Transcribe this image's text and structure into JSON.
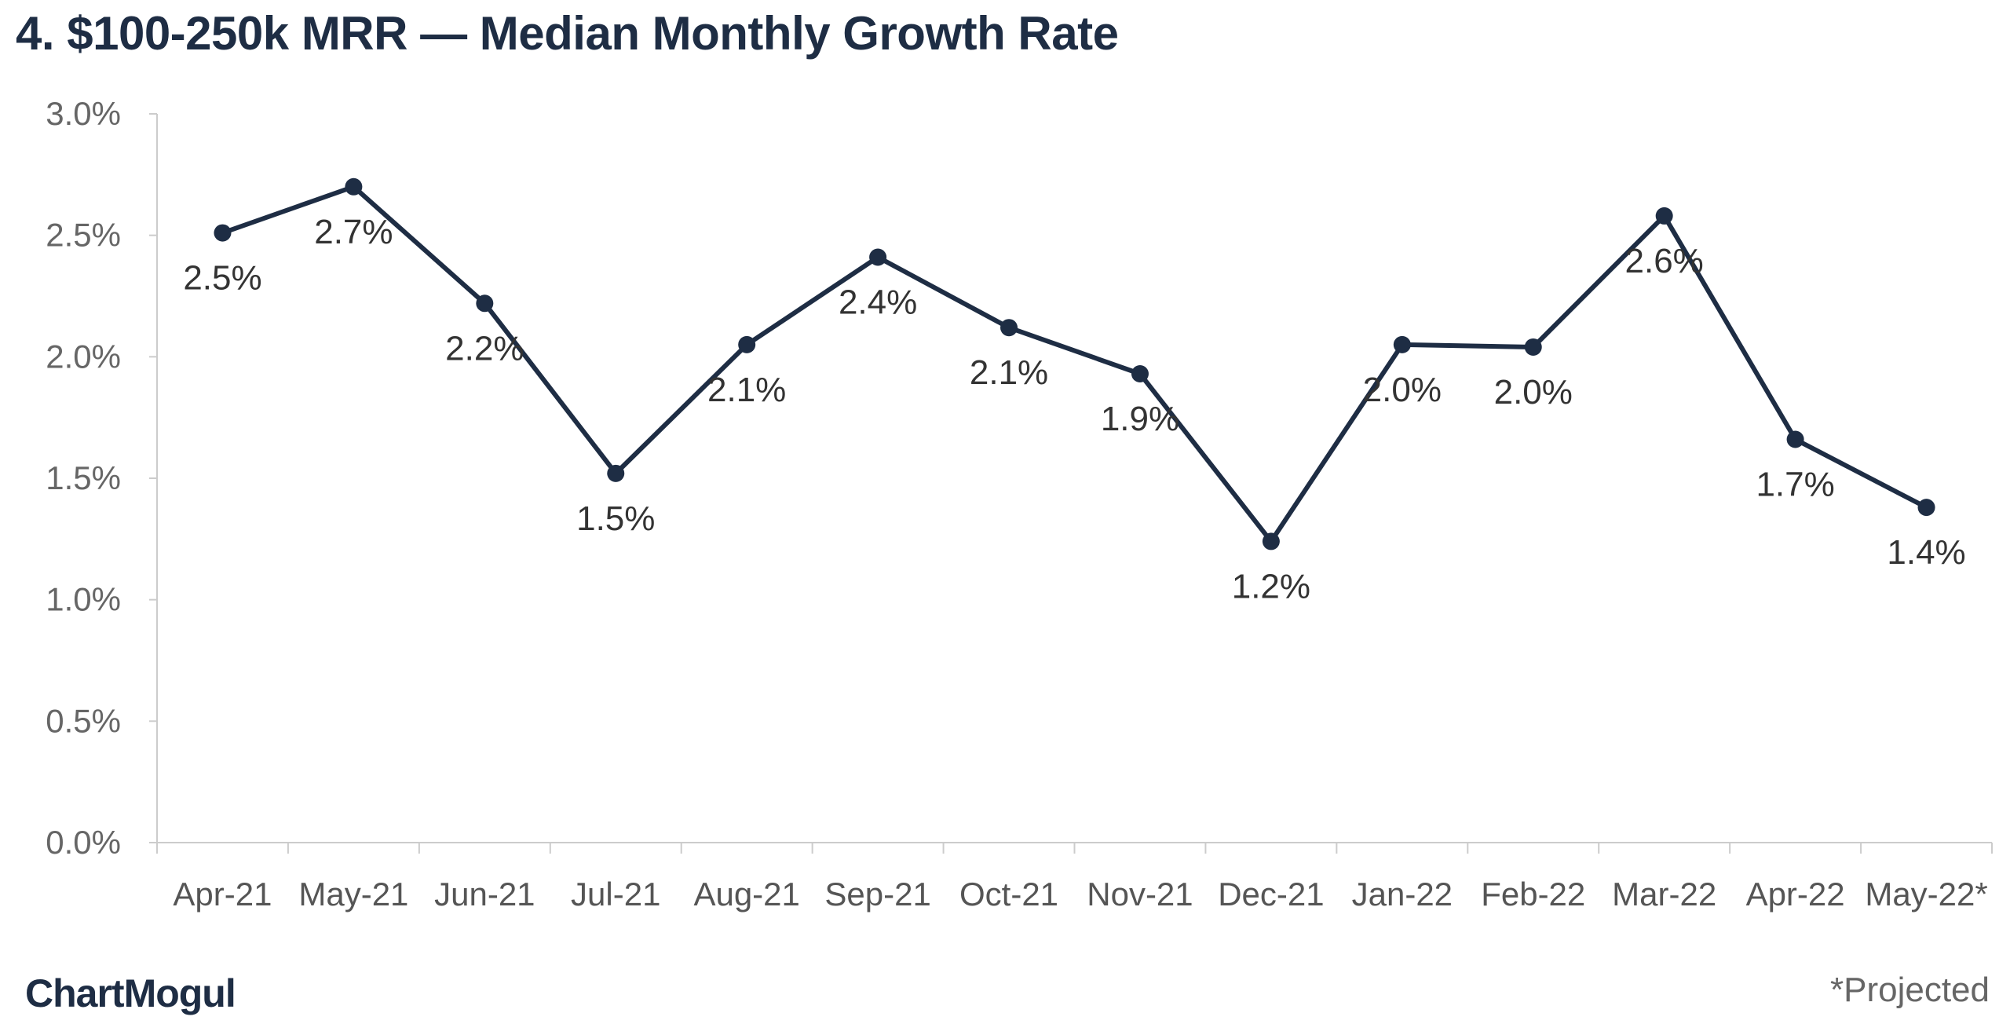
{
  "title": "4. $100-250k MRR — Median Monthly Growth Rate",
  "brand": "ChartMogul",
  "footnote": "*Projected",
  "colors": {
    "line": "#1e2d44",
    "axis": "#cccccc",
    "title": "#1e2d44"
  },
  "chart_data": {
    "type": "line",
    "title": "4. $100-250k MRR — Median Monthly Growth Rate",
    "xlabel": "",
    "ylabel": "",
    "ylim": [
      0,
      3.0
    ],
    "yticks": [
      "0.0%",
      "0.5%",
      "1.0%",
      "1.5%",
      "2.0%",
      "2.5%",
      "3.0%"
    ],
    "categories": [
      "Apr-21",
      "May-21",
      "Jun-21",
      "Jul-21",
      "Aug-21",
      "Sep-21",
      "Oct-21",
      "Nov-21",
      "Dec-21",
      "Jan-22",
      "Feb-22",
      "Mar-22",
      "Apr-22",
      "May-22*"
    ],
    "series": [
      {
        "values": [
          2.51,
          2.7,
          2.22,
          1.52,
          2.05,
          2.41,
          2.12,
          1.93,
          1.24,
          2.05,
          2.04,
          2.58,
          1.66,
          1.38
        ],
        "labels": [
          "2.5%",
          "2.7%",
          "2.2%",
          "1.5%",
          "2.1%",
          "2.4%",
          "2.1%",
          "1.9%",
          "1.2%",
          "2.0%",
          "2.0%",
          "2.6%",
          "1.7%",
          "1.4%"
        ]
      }
    ],
    "grid": false,
    "legend": "none"
  }
}
